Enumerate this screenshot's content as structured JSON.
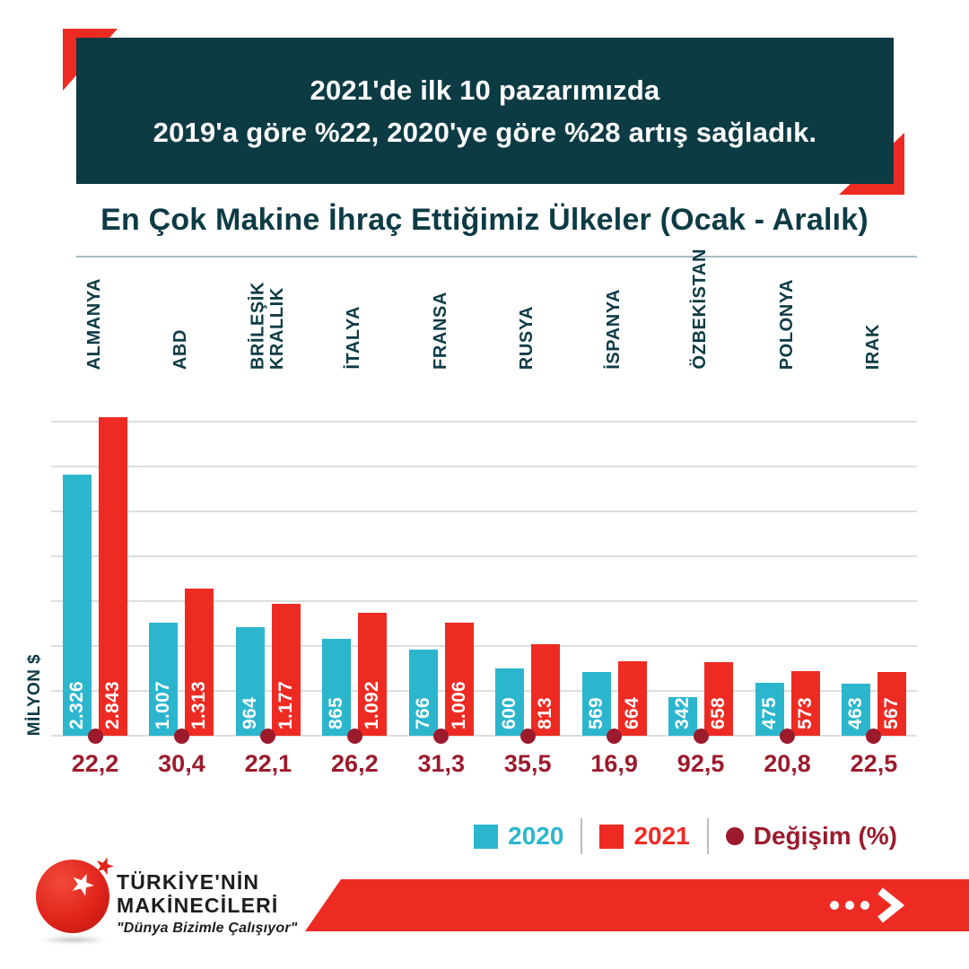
{
  "header_banner": {
    "line1": "2021'de ilk 10 pazarımızda",
    "line2": "2019'a göre %22, 2020'ye göre %28 artış sağladık.",
    "background": "#0c3b44",
    "accent_color": "#ee2b23"
  },
  "title": "En Çok Makine İhraç Ettiğimiz Ülkeler (Ocak - Aralık)",
  "chart_data": {
    "type": "bar",
    "categories": [
      "ALMANYA",
      "ABD",
      "BRİLEŞİK\nKRALLIK",
      "İTALYA",
      "FRANSA",
      "RUSYA",
      "İSPANYA",
      "ÖZBEKİSTAN",
      "POLONYA",
      "IRAK"
    ],
    "series": [
      {
        "name": "2020",
        "color": "#2bb6ce",
        "values": [
          2326,
          1007,
          964,
          865,
          766,
          600,
          569,
          342,
          475,
          463
        ],
        "labels": [
          "2.326",
          "1.007",
          "964",
          "865",
          "766",
          "600",
          "569",
          "342",
          "475",
          "463"
        ]
      },
      {
        "name": "2021",
        "color": "#ee2b23",
        "values": [
          2843,
          1313,
          1177,
          1092,
          1006,
          813,
          664,
          658,
          573,
          567
        ],
        "labels": [
          "2.843",
          "1.313",
          "1.177",
          "1.092",
          "1.006",
          "813",
          "664",
          "658",
          "573",
          "567"
        ]
      }
    ],
    "change_percent": {
      "name": "Değişim (%)",
      "color": "#9b1b2d",
      "values": [
        22.2,
        30.4,
        22.1,
        26.2,
        31.3,
        35.5,
        16.9,
        92.5,
        20.8,
        22.5
      ],
      "labels": [
        "22,2",
        "30,4",
        "22,1",
        "26,2",
        "31,3",
        "35,5",
        "16,9",
        "92,5",
        "20,8",
        "22,5"
      ]
    },
    "xlabel": "",
    "ylabel": "MİLYON $",
    "ylim": [
      0,
      2880
    ],
    "grid_step": 400,
    "grid": true,
    "grid_color": "#dcdede",
    "category_color": "#0d3b45",
    "value_label_color": "#ffffff",
    "legend_position": "bottom-right"
  },
  "legend": {
    "items": [
      {
        "label": "2020",
        "color": "#2bb6ce",
        "marker": "square"
      },
      {
        "label": "2021",
        "color": "#ee2b23",
        "marker": "square"
      },
      {
        "label": "Değişim (%)",
        "color": "#9b1b2d",
        "marker": "dot"
      }
    ]
  },
  "footer": {
    "brand_line1": "TÜRKİYE'NİN",
    "brand_line2": "MAKİNECİLERİ",
    "tagline": "\"Dünya Bizimle Çalışıyor\"",
    "cta_color": "#ee2b23"
  }
}
